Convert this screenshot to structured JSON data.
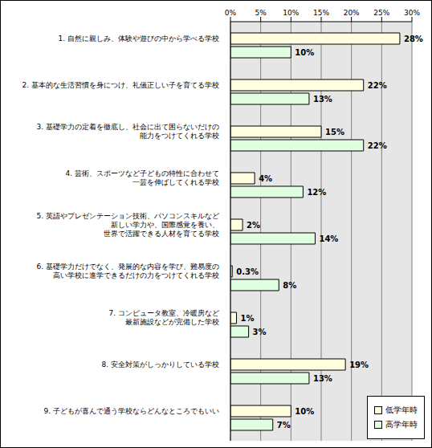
{
  "chart_data": {
    "type": "bar",
    "orientation": "horizontal",
    "categories": [
      "1. 自然に親しみ、体験や遊びの中から学べる学校",
      "2. 基本的な生活習慣を身につけ、礼儀正しい子を育てる学校",
      "3. 基礎学力の定着を徹底し、社会に出て困らないだけの\n能力をつけてくれる学校",
      "4. 芸術、スポーツなど子どもの特性に合わせて\n一芸を伸ばしてくれる学校",
      "5. 英語やプレゼンテーション技術、パソコンスキルなど\n新しい学力や、国際感覚を養い、\n世界で活躍できる人材を育てる学校",
      "6. 基礎学力だけでなく、発展的な内容を学び、難易度の\n高い学校に進学できるだけの力をつけてくれる学校",
      "7. コンピュータ教室、冷暖房など\n最新施設などが完備した学校",
      "8. 安全対策がしっかりしている学校",
      "9. 子どもが喜んで通う学校ならどんなところでもいい"
    ],
    "series": [
      {
        "name": "低学年時",
        "color": "#ffffe0",
        "values": [
          28,
          22,
          15,
          4,
          2,
          0.3,
          1,
          19,
          10
        ],
        "value_labels": [
          "28%",
          "22%",
          "15%",
          "4%",
          "2%",
          "0.3%",
          "1%",
          "19%",
          "10%"
        ]
      },
      {
        "name": "高学年時",
        "color": "#e0ffe0",
        "values": [
          10,
          13,
          22,
          12,
          14,
          8,
          3,
          13,
          7
        ],
        "value_labels": [
          "10%",
          "13%",
          "22%",
          "12%",
          "14%",
          "8%",
          "3%",
          "13%",
          "7%"
        ]
      }
    ],
    "xlim": [
      0,
      30
    ],
    "xticks": [
      {
        "value": 0,
        "label": "0%"
      },
      {
        "value": 5,
        "label": "5%"
      },
      {
        "value": 10,
        "label": "10%"
      },
      {
        "value": 15,
        "label": "15%"
      },
      {
        "value": 20,
        "label": "20%"
      },
      {
        "value": 25,
        "label": "25%"
      },
      {
        "value": 30,
        "label": "30%"
      }
    ],
    "grid": true,
    "data_labels": true,
    "legend": "lower right"
  }
}
